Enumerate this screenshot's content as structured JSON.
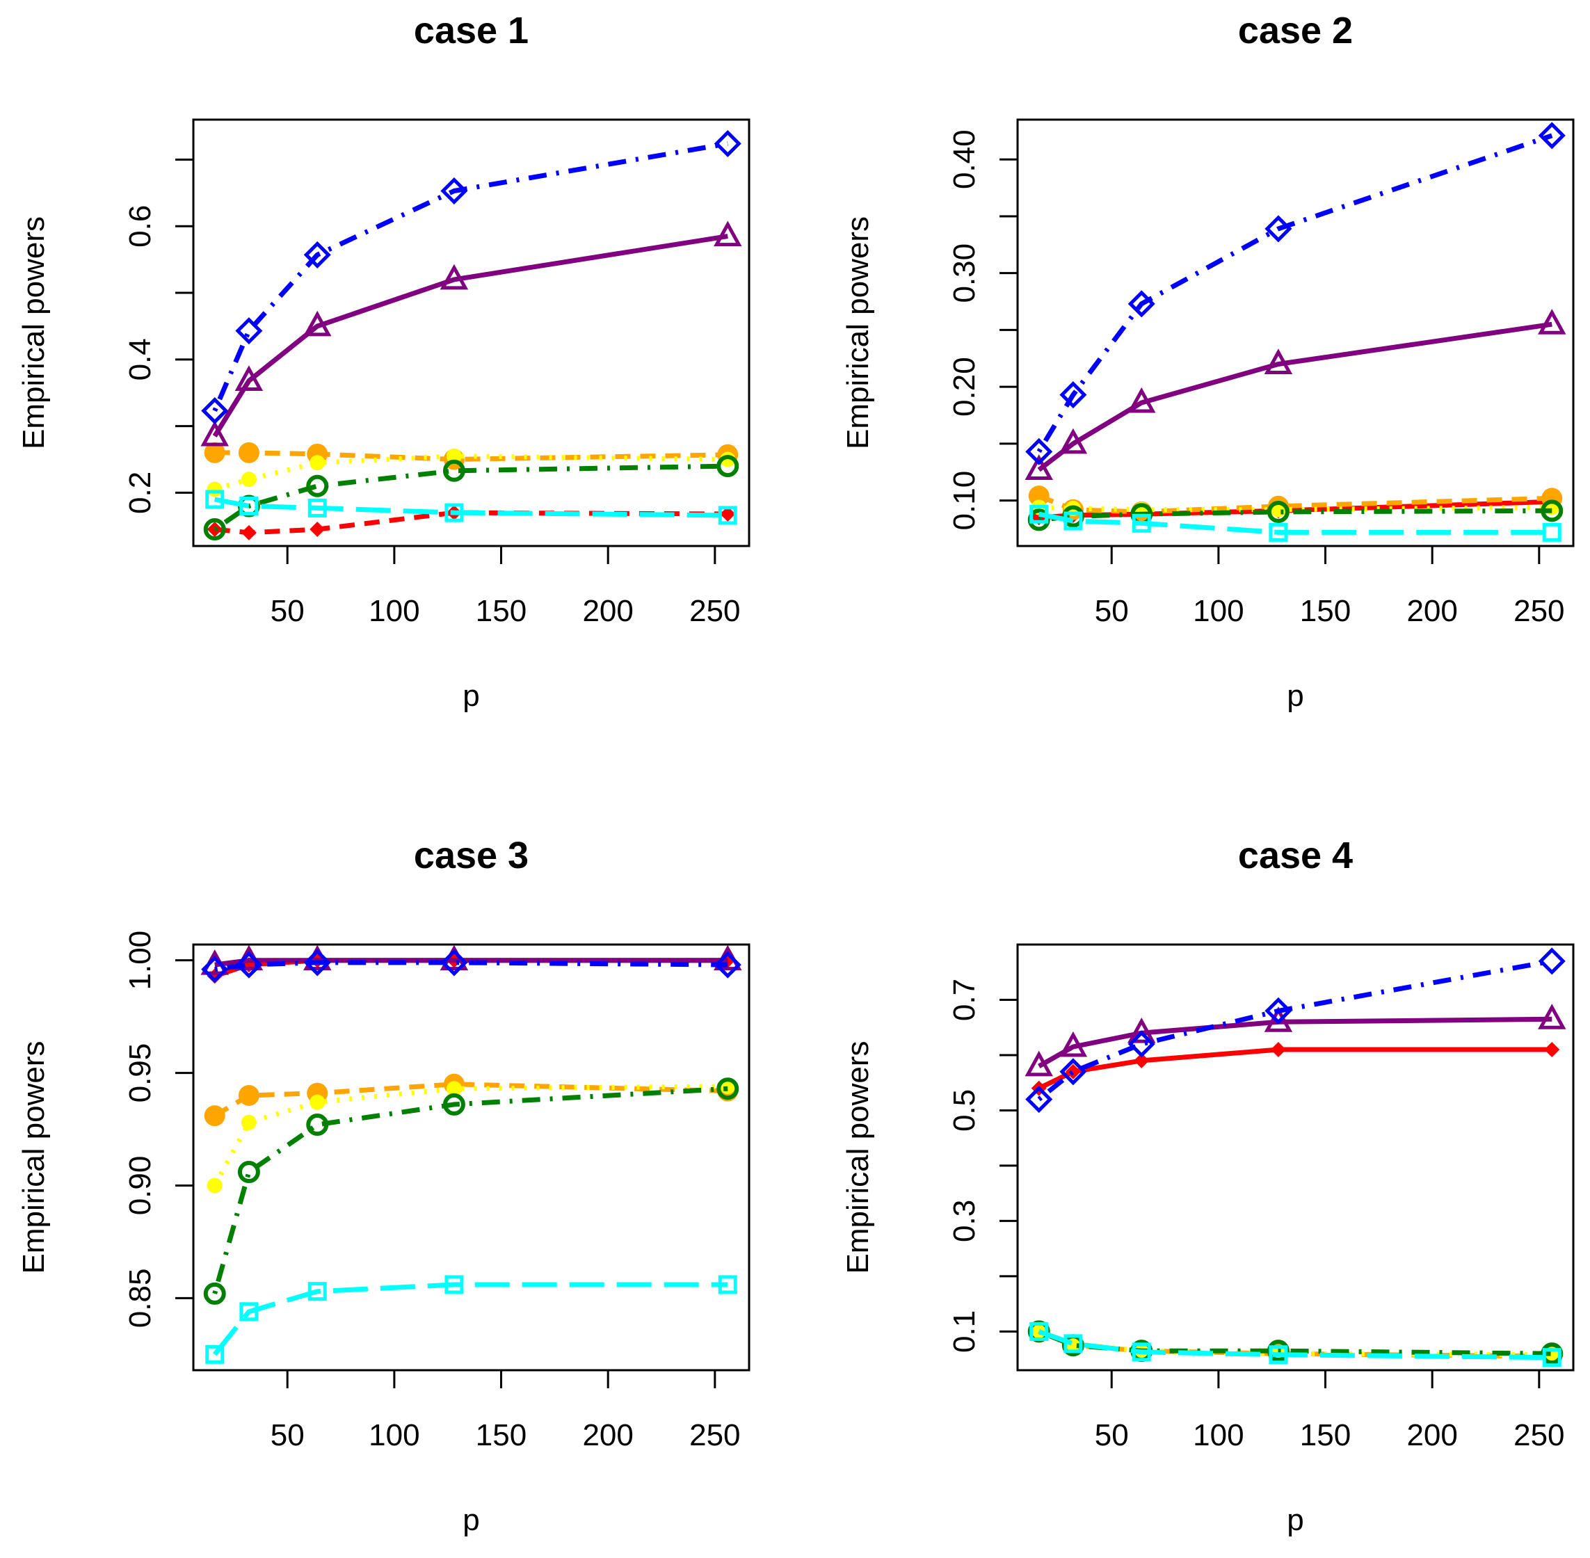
{
  "figure": {
    "layout": "2x2 grid of line charts"
  },
  "chart_data": [
    {
      "type": "line",
      "title": "case 1",
      "xlabel": "p",
      "ylabel": "Empirical powers",
      "x": [
        16,
        32,
        64,
        128,
        256
      ],
      "xticks": [
        50,
        100,
        150,
        200,
        250
      ],
      "xtick_labels": [
        "50",
        "100",
        "150",
        "200",
        "250"
      ],
      "xlim": [
        6,
        266
      ],
      "ylim": [
        0.12,
        0.76
      ],
      "yticks": [
        0.2,
        0.3,
        0.4,
        0.5,
        0.6,
        0.7
      ],
      "yticks_labeled": [
        0.2,
        0.4,
        0.6
      ],
      "ytick_labels": [
        "0.2",
        "0.4",
        "0.6"
      ],
      "series": [
        {
          "color": "#ff0000",
          "line": "dashed",
          "marker": "filled-diamond",
          "values": [
            0.145,
            0.14,
            0.145,
            0.17,
            0.168
          ]
        },
        {
          "color": "#ffa500",
          "line": "dashed",
          "marker": "filled-circle",
          "values": [
            0.26,
            0.26,
            0.258,
            0.25,
            0.257
          ]
        },
        {
          "color": "#ffff00",
          "line": "dotted",
          "marker": "filled-small-circle",
          "values": [
            0.205,
            0.22,
            0.245,
            0.255,
            0.25
          ]
        },
        {
          "color": "#008000",
          "line": "dotdash",
          "marker": "open-circle",
          "values": [
            0.145,
            0.18,
            0.21,
            0.233,
            0.24
          ]
        },
        {
          "color": "#00ffff",
          "line": "longdash",
          "marker": "open-square",
          "values": [
            0.19,
            0.18,
            0.177,
            0.17,
            0.166
          ]
        },
        {
          "color": "#800080",
          "line": "solid",
          "marker": "open-triangle",
          "values": [
            0.285,
            0.368,
            0.45,
            0.52,
            0.585
          ]
        },
        {
          "color": "#0000ff",
          "line": "dotdash",
          "marker": "open-diamond",
          "values": [
            0.323,
            0.443,
            0.557,
            0.653,
            0.724
          ]
        }
      ]
    },
    {
      "type": "line",
      "title": "case 2",
      "xlabel": "p",
      "ylabel": "Empirical powers",
      "x": [
        16,
        32,
        64,
        128,
        256
      ],
      "xticks": [
        50,
        100,
        150,
        200,
        250
      ],
      "xtick_labels": [
        "50",
        "100",
        "150",
        "200",
        "250"
      ],
      "xlim": [
        6,
        266
      ],
      "ylim": [
        0.06,
        0.435
      ],
      "yticks": [
        0.1,
        0.15,
        0.2,
        0.25,
        0.3,
        0.35,
        0.4
      ],
      "yticks_labeled": [
        0.1,
        0.2,
        0.3,
        0.4
      ],
      "ytick_labels": [
        "0.10",
        "0.20",
        "0.30",
        "0.40"
      ],
      "series": [
        {
          "color": "#ff0000",
          "line": "solid",
          "marker": "filled-diamond",
          "values": [
            0.085,
            0.087,
            0.088,
            0.091,
            0.099
          ]
        },
        {
          "color": "#ffa500",
          "line": "dashed",
          "marker": "filled-circle",
          "values": [
            0.104,
            0.092,
            0.09,
            0.095,
            0.102
          ]
        },
        {
          "color": "#ffff00",
          "line": "dotted",
          "marker": "filled-small-circle",
          "values": [
            0.094,
            0.093,
            0.092,
            0.092,
            0.094
          ]
        },
        {
          "color": "#008000",
          "line": "dotdash",
          "marker": "open-circle",
          "values": [
            0.083,
            0.086,
            0.088,
            0.09,
            0.091
          ]
        },
        {
          "color": "#00ffff",
          "line": "longdash",
          "marker": "open-square",
          "values": [
            0.088,
            0.082,
            0.08,
            0.072,
            0.072
          ]
        },
        {
          "color": "#800080",
          "line": "solid",
          "marker": "open-triangle",
          "values": [
            0.127,
            0.15,
            0.186,
            0.22,
            0.255
          ]
        },
        {
          "color": "#0000ff",
          "line": "dotdash",
          "marker": "open-diamond",
          "values": [
            0.143,
            0.193,
            0.273,
            0.339,
            0.421
          ]
        }
      ]
    },
    {
      "type": "line",
      "title": "case 3",
      "xlabel": "p",
      "ylabel": "Empirical powers",
      "x": [
        16,
        32,
        64,
        128,
        256
      ],
      "xticks": [
        50,
        100,
        150,
        200,
        250
      ],
      "xtick_labels": [
        "50",
        "100",
        "150",
        "200",
        "250"
      ],
      "xlim": [
        6,
        266
      ],
      "ylim": [
        0.818,
        1.007
      ],
      "yticks": [
        0.85,
        0.9,
        0.95,
        1.0
      ],
      "yticks_labeled": [
        0.85,
        0.9,
        0.95,
        1.0
      ],
      "ytick_labels": [
        "0.85",
        "0.90",
        "0.95",
        "1.00"
      ],
      "series": [
        {
          "color": "#ff0000",
          "line": "solid",
          "marker": "filled-diamond",
          "values": [
            0.993,
            0.998,
            1.0,
            1.0,
            1.0
          ]
        },
        {
          "color": "#ffa500",
          "line": "dashed",
          "marker": "filled-circle",
          "values": [
            0.931,
            0.94,
            0.941,
            0.945,
            0.942
          ]
        },
        {
          "color": "#ffff00",
          "line": "dotted",
          "marker": "filled-small-circle",
          "values": [
            0.9,
            0.928,
            0.937,
            0.943,
            0.944
          ]
        },
        {
          "color": "#008000",
          "line": "dotdash",
          "marker": "open-circle",
          "values": [
            0.852,
            0.906,
            0.927,
            0.936,
            0.943
          ]
        },
        {
          "color": "#00ffff",
          "line": "longdash",
          "marker": "open-square",
          "values": [
            0.825,
            0.844,
            0.853,
            0.856,
            0.856
          ]
        },
        {
          "color": "#800080",
          "line": "solid",
          "marker": "open-triangle",
          "values": [
            0.998,
            1.0,
            1.0,
            1.0,
            1.0
          ]
        },
        {
          "color": "#0000ff",
          "line": "dotdash",
          "marker": "open-diamond",
          "values": [
            0.996,
            0.998,
            0.999,
            0.999,
            0.998
          ]
        }
      ]
    },
    {
      "type": "line",
      "title": "case 4",
      "xlabel": "p",
      "ylabel": "Empirical powers",
      "x": [
        16,
        32,
        64,
        128,
        256
      ],
      "xticks": [
        50,
        100,
        150,
        200,
        250
      ],
      "xtick_labels": [
        "50",
        "100",
        "150",
        "200",
        "250"
      ],
      "xlim": [
        6,
        266
      ],
      "ylim": [
        0.03,
        0.8
      ],
      "yticks": [
        0.1,
        0.2,
        0.3,
        0.4,
        0.5,
        0.6,
        0.7
      ],
      "yticks_labeled": [
        0.1,
        0.3,
        0.5,
        0.7
      ],
      "ytick_labels": [
        "0.1",
        "0.3",
        "0.5",
        "0.7"
      ],
      "series": [
        {
          "color": "#ff0000",
          "line": "solid",
          "marker": "filled-diamond",
          "values": [
            0.54,
            0.57,
            0.59,
            0.61,
            0.61
          ]
        },
        {
          "color": "#ffa500",
          "line": "dashed",
          "marker": "filled-circle",
          "values": [
            0.1,
            0.075,
            0.065,
            0.06,
            0.055
          ]
        },
        {
          "color": "#ffff00",
          "line": "dotted",
          "marker": "filled-small-circle",
          "values": [
            0.1,
            0.078,
            0.065,
            0.06,
            0.058
          ]
        },
        {
          "color": "#008000",
          "line": "dotdash",
          "marker": "open-circle",
          "values": [
            0.1,
            0.075,
            0.065,
            0.065,
            0.06
          ]
        },
        {
          "color": "#00ffff",
          "line": "longdash",
          "marker": "open-square",
          "values": [
            0.1,
            0.078,
            0.063,
            0.058,
            0.053
          ]
        },
        {
          "color": "#800080",
          "line": "solid",
          "marker": "open-triangle",
          "values": [
            0.58,
            0.615,
            0.64,
            0.66,
            0.665
          ]
        },
        {
          "color": "#0000ff",
          "line": "dotdash",
          "marker": "open-diamond",
          "values": [
            0.52,
            0.57,
            0.62,
            0.68,
            0.77
          ]
        }
      ]
    }
  ]
}
